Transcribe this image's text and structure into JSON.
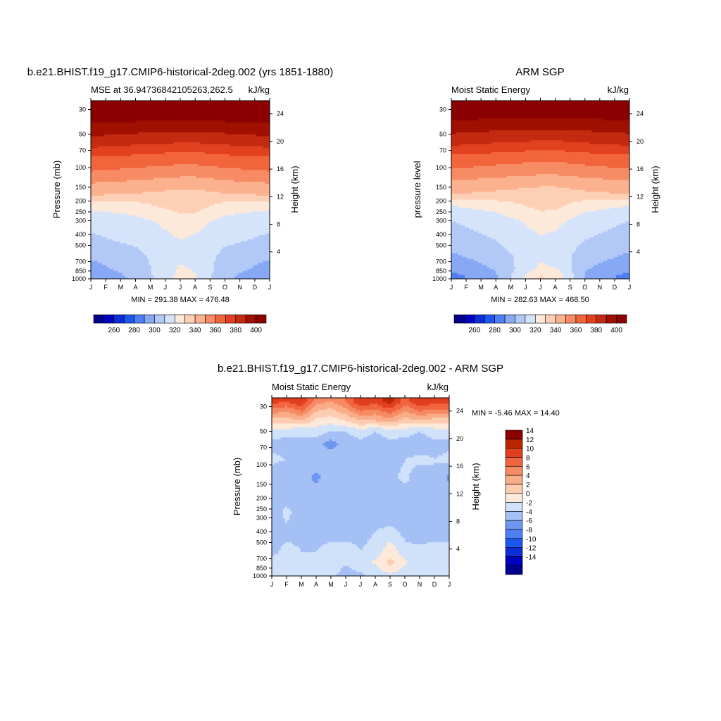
{
  "chart_data": [
    {
      "type": "heatmap",
      "panel": "model",
      "title": "b.e21.BHIST.f19_g17.CMIP6-historical-2deg.002 (yrs 1851-1880)",
      "left_string": "MSE at 36.94736842105263,262.5",
      "right_string": "kJ/kg",
      "ylabel": "Pressure (mb)",
      "ylabel_right": "Height (km)",
      "x_ticks": [
        "J",
        "F",
        "M",
        "A",
        "M",
        "J",
        "J",
        "A",
        "S",
        "O",
        "N",
        "D",
        "J"
      ],
      "y_ticks": [
        30,
        50,
        70,
        100,
        150,
        200,
        250,
        300,
        400,
        500,
        700,
        850,
        1000
      ],
      "y_log_scale": true,
      "y_range_mb": [
        25,
        1000
      ],
      "height_ticks_km": [
        4,
        8,
        12,
        16,
        20,
        24
      ],
      "stats": "MIN = 291.38 MAX = 476.48",
      "colorbar": {
        "orientation": "horizontal",
        "levels": [
          250,
          260,
          270,
          280,
          290,
          300,
          310,
          320,
          330,
          340,
          350,
          360,
          370,
          380,
          390,
          400,
          410
        ],
        "labels": [
          "260",
          "280",
          "300",
          "320",
          "340",
          "360",
          "380",
          "400"
        ]
      },
      "field": {
        "months_x": [
          0,
          3,
          6,
          7,
          9,
          12
        ],
        "pressure_mb": [
          30,
          60,
          80,
          100,
          130,
          170,
          220,
          300,
          450,
          600,
          800,
          950
        ],
        "values": [
          [
            420,
            420,
            420,
            420,
            420,
            420
          ],
          [
            395,
            392,
            390,
            390,
            392,
            395
          ],
          [
            380,
            378,
            375,
            375,
            378,
            380
          ],
          [
            373,
            370,
            368,
            368,
            370,
            373
          ],
          [
            362,
            360,
            357,
            357,
            360,
            362
          ],
          [
            353,
            350,
            347,
            347,
            350,
            353
          ],
          [
            333,
            336,
            345,
            345,
            336,
            333
          ],
          [
            323,
            327,
            335,
            334,
            327,
            323
          ],
          [
            318,
            322,
            330,
            328,
            322,
            318
          ],
          [
            312,
            318,
            328,
            326,
            318,
            312
          ],
          [
            307,
            314,
            331,
            329,
            314,
            307
          ],
          [
            303,
            312,
            333,
            331,
            312,
            303
          ]
        ]
      }
    },
    {
      "type": "heatmap",
      "panel": "obs",
      "title": "ARM SGP",
      "left_string": "Moist Static Energy",
      "right_string": "kJ/kg",
      "ylabel": "pressure level",
      "ylabel_right": "Height (km)",
      "x_ticks": [
        "J",
        "F",
        "M",
        "A",
        "M",
        "J",
        "J",
        "A",
        "S",
        "O",
        "N",
        "D",
        "J"
      ],
      "y_ticks": [
        30,
        50,
        70,
        100,
        150,
        200,
        250,
        300,
        400,
        500,
        700,
        850,
        1000
      ],
      "y_log_scale": true,
      "y_range_mb": [
        25,
        1000
      ],
      "height_ticks_km": [
        4,
        8,
        12,
        16,
        20,
        24
      ],
      "stats": "MIN = 282.63 MAX = 468.50",
      "colorbar": {
        "orientation": "horizontal",
        "levels": [
          250,
          260,
          270,
          280,
          290,
          300,
          310,
          320,
          330,
          340,
          350,
          360,
          370,
          380,
          390,
          400,
          410
        ],
        "labels": [
          "260",
          "280",
          "300",
          "320",
          "340",
          "360",
          "380",
          "400"
        ]
      },
      "field": {
        "months_x": [
          0,
          3,
          6,
          7,
          9,
          12
        ],
        "pressure_mb": [
          30,
          60,
          80,
          100,
          130,
          170,
          220,
          300,
          450,
          600,
          800,
          950
        ],
        "values": [
          [
            418,
            418,
            418,
            418,
            418,
            418
          ],
          [
            393,
            390,
            388,
            388,
            390,
            393
          ],
          [
            378,
            376,
            373,
            373,
            376,
            378
          ],
          [
            371,
            368,
            366,
            366,
            368,
            371
          ],
          [
            360,
            358,
            355,
            355,
            358,
            360
          ],
          [
            351,
            348,
            345,
            345,
            348,
            351
          ],
          [
            330,
            334,
            343,
            343,
            334,
            330
          ],
          [
            320,
            325,
            334,
            333,
            325,
            320
          ],
          [
            315,
            320,
            329,
            327,
            320,
            315
          ],
          [
            309,
            316,
            327,
            325,
            316,
            309
          ],
          [
            303,
            311,
            332,
            330,
            311,
            303
          ],
          [
            296,
            309,
            341,
            338,
            309,
            296
          ]
        ]
      }
    },
    {
      "type": "heatmap",
      "panel": "difference",
      "title": "b.e21.BHIST.f19_g17.CMIP6-historical-2deg.002 - ARM SGP",
      "left_string": "Moist Static Energy",
      "right_string": "kJ/kg",
      "ylabel": "Pressure (mb)",
      "ylabel_right": "Height (km)",
      "x_ticks": [
        "J",
        "F",
        "M",
        "A",
        "M",
        "J",
        "J",
        "A",
        "S",
        "O",
        "N",
        "D",
        "J"
      ],
      "y_ticks": [
        30,
        50,
        70,
        100,
        150,
        200,
        250,
        300,
        400,
        500,
        700,
        850,
        1000
      ],
      "y_log_scale": true,
      "y_range_mb": [
        25,
        1000
      ],
      "height_ticks_km": [
        4,
        8,
        12,
        16,
        20,
        24
      ],
      "stats": "MIN =  -5.46 MAX =  14.40",
      "colorbar": {
        "orientation": "vertical",
        "levels": [
          -16,
          -14,
          -12,
          -10,
          -8,
          -6,
          -4,
          -2,
          0,
          2,
          4,
          6,
          8,
          10,
          12,
          14,
          16
        ],
        "labels": [
          "-14",
          "-12",
          "-10",
          "-8",
          "-6",
          "-4",
          "-2",
          "0",
          "2",
          "4",
          "6",
          "8",
          "10",
          "12",
          "14"
        ]
      },
      "field": {
        "months_x": [
          0,
          1,
          2,
          3,
          4,
          5,
          6,
          7,
          8,
          9,
          10,
          11,
          12
        ],
        "pressure_mb": [
          27,
          33,
          40,
          50,
          65,
          90,
          130,
          190,
          270,
          400,
          600,
          750,
          880,
          970
        ],
        "values": [
          [
            11,
            10,
            12,
            7,
            6,
            8,
            12,
            11,
            13,
            9,
            12,
            11,
            11
          ],
          [
            7,
            6,
            8,
            4,
            3,
            5,
            8,
            7,
            9,
            6,
            8,
            7,
            7
          ],
          [
            3,
            3,
            4,
            1.5,
            1,
            2,
            4,
            4,
            5,
            3,
            4,
            3,
            3
          ],
          [
            -1,
            -1,
            -1.5,
            -1,
            -2,
            -2,
            -1,
            -2,
            -1,
            -1,
            -2,
            -1,
            -1
          ],
          [
            -2.5,
            -3,
            -2.5,
            -3,
            -5,
            -3,
            -2.5,
            -3,
            -2.5,
            -3,
            -3,
            -2.5,
            -2.5
          ],
          [
            -1.5,
            -2,
            -2.5,
            -3,
            -2.5,
            -2,
            -3,
            -2.5,
            -3,
            -2,
            -1.5,
            -2,
            -1.5
          ],
          [
            -3,
            -4,
            -3,
            -4.5,
            -3,
            -2.5,
            -3,
            -4,
            -2.5,
            -1.5,
            -3,
            -2,
            -4.5
          ],
          [
            -2.5,
            -3,
            -3,
            -3,
            -2.5,
            -3,
            -3,
            -3,
            -3.5,
            -3,
            -2.5,
            -3,
            -3
          ],
          [
            -3,
            -1.5,
            -3,
            -2.5,
            -3,
            -3,
            -3,
            -3,
            -3,
            -2.5,
            -3,
            -2,
            -2.5
          ],
          [
            -2.5,
            -2.5,
            -2.5,
            -3,
            -3,
            -3,
            -2.5,
            -2,
            -1.5,
            -2.5,
            -3,
            -2.5,
            -2
          ],
          [
            -2.5,
            -1.5,
            -2,
            -2,
            -1,
            -1,
            -2,
            -1.5,
            1.5,
            -1.5,
            -1.5,
            -1.5,
            -2
          ],
          [
            -1.5,
            -1.5,
            -2,
            -1.5,
            -1,
            -1.5,
            -1,
            0.5,
            2.5,
            0.5,
            -1.5,
            -1.5,
            -1.5
          ],
          [
            -1.5,
            -1,
            -1,
            -1,
            -1,
            -2.5,
            -1.5,
            -1,
            1.5,
            -1,
            -1,
            -1,
            -1.5
          ],
          [
            -1.5,
            -1,
            -1,
            -1,
            -1.5,
            -3,
            -2.5,
            -1,
            -0.5,
            -1,
            -1,
            -1,
            -1
          ]
        ]
      }
    }
  ]
}
